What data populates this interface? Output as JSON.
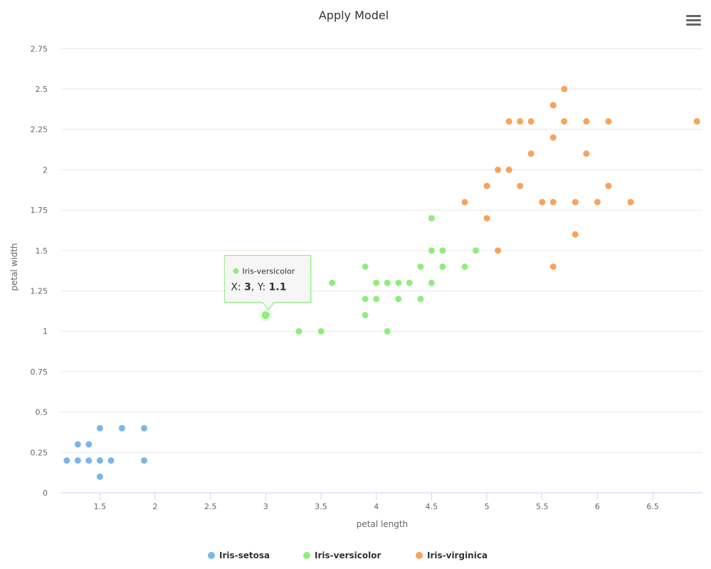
{
  "chart_data": {
    "type": "scatter",
    "title": "Apply Model",
    "xlabel": "petal length",
    "ylabel": "petal width",
    "xlim": [
      1.15,
      6.95
    ],
    "ylim": [
      0,
      2.8
    ],
    "xticks": [
      1.5,
      2,
      2.5,
      3,
      3.5,
      4,
      4.5,
      5,
      5.5,
      6,
      6.5
    ],
    "xtick_labels": [
      "1.5",
      "2",
      "2.5",
      "3",
      "3.5",
      "4",
      "4.5",
      "5",
      "5.5",
      "6",
      "6.5"
    ],
    "yticks": [
      0,
      0.25,
      0.5,
      0.75,
      1,
      1.25,
      1.5,
      1.75,
      2,
      2.25,
      2.5,
      2.75
    ],
    "ytick_labels": [
      "0",
      "0.25",
      "0.5",
      "0.75",
      "1",
      "1.25",
      "1.5",
      "1.75",
      "2",
      "2.25",
      "2.5",
      "2.75"
    ],
    "grid": "horizontal",
    "legend_position": "bottom-center",
    "series": [
      {
        "name": "Iris-setosa",
        "color": "#7cb5ec",
        "points": [
          [
            1.2,
            0.2
          ],
          [
            1.3,
            0.2
          ],
          [
            1.4,
            0.2
          ],
          [
            1.5,
            0.2
          ],
          [
            1.6,
            0.2
          ],
          [
            1.3,
            0.3
          ],
          [
            1.4,
            0.3
          ],
          [
            1.5,
            0.1
          ],
          [
            1.5,
            0.4
          ],
          [
            1.7,
            0.4
          ],
          [
            1.9,
            0.4
          ],
          [
            1.9,
            0.2
          ]
        ]
      },
      {
        "name": "Iris-versicolor",
        "color": "#90ed7d",
        "points": [
          [
            3,
            1.1
          ],
          [
            3.3,
            1
          ],
          [
            3.5,
            1
          ],
          [
            3.6,
            1.3
          ],
          [
            3.9,
            1.1
          ],
          [
            3.9,
            1.2
          ],
          [
            3.9,
            1.4
          ],
          [
            4,
            1.2
          ],
          [
            4,
            1.3
          ],
          [
            4.1,
            1
          ],
          [
            4.1,
            1.3
          ],
          [
            4.2,
            1.2
          ],
          [
            4.2,
            1.3
          ],
          [
            4.3,
            1.3
          ],
          [
            4.4,
            1.2
          ],
          [
            4.4,
            1.4
          ],
          [
            4.5,
            1.3
          ],
          [
            4.5,
            1.5
          ],
          [
            4.5,
            1.7
          ],
          [
            4.6,
            1.4
          ],
          [
            4.6,
            1.5
          ],
          [
            4.8,
            1.4
          ],
          [
            4.9,
            1.5
          ]
        ]
      },
      {
        "name": "Iris-virginica",
        "color": "#f7a35c",
        "points": [
          [
            4.8,
            1.8
          ],
          [
            5,
            1.7
          ],
          [
            5,
            1.9
          ],
          [
            5.1,
            1.5
          ],
          [
            5.1,
            2
          ],
          [
            5.2,
            2
          ],
          [
            5.2,
            2.3
          ],
          [
            5.3,
            1.9
          ],
          [
            5.3,
            2.3
          ],
          [
            5.4,
            2.1
          ],
          [
            5.4,
            2.3
          ],
          [
            5.5,
            1.8
          ],
          [
            5.6,
            1.4
          ],
          [
            5.6,
            1.8
          ],
          [
            5.6,
            2.2
          ],
          [
            5.6,
            2.4
          ],
          [
            5.7,
            2.3
          ],
          [
            5.7,
            2.5
          ],
          [
            5.8,
            1.6
          ],
          [
            5.8,
            1.8
          ],
          [
            5.9,
            2.1
          ],
          [
            5.9,
            2.3
          ],
          [
            6,
            1.8
          ],
          [
            6.1,
            1.9
          ],
          [
            6.1,
            2.3
          ],
          [
            6.3,
            1.8
          ],
          [
            6.9,
            2.3
          ]
        ]
      }
    ],
    "tooltip": {
      "series_name": "Iris-versicolor",
      "color": "#90ed7d",
      "x_label": "X: ",
      "x_value": "3",
      "y_label": "Y: ",
      "y_value": "1.1",
      "x": 3,
      "y": 1.1
    }
  },
  "toolbar": {
    "menu_icon": "hamburger-menu-icon"
  }
}
